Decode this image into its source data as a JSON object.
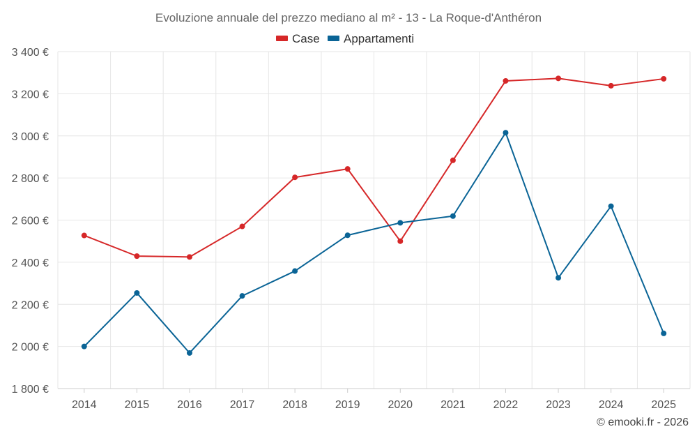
{
  "chart_data": {
    "type": "line",
    "title": "Evoluzione annuale del prezzo mediano al m² - 13 - La Roque-d'Anthéron",
    "categories": [
      "2014",
      "2015",
      "2016",
      "2017",
      "2018",
      "2019",
      "2020",
      "2021",
      "2022",
      "2023",
      "2024",
      "2025"
    ],
    "series": [
      {
        "name": "Case",
        "color": "#d62728",
        "values": [
          2527,
          2429,
          2425,
          2570,
          2803,
          2843,
          2500,
          2884,
          3261,
          3273,
          3238,
          3271
        ]
      },
      {
        "name": "Appartamenti",
        "color": "#0a6496",
        "values": [
          2000,
          2254,
          1969,
          2240,
          2358,
          2528,
          2587,
          2619,
          3015,
          2326,
          2666,
          2062
        ]
      }
    ],
    "ylim": [
      1800,
      3400
    ],
    "yticks": [
      1800,
      2000,
      2200,
      2400,
      2600,
      2800,
      3000,
      3200,
      3400
    ],
    "ytick_labels": [
      "1 800 €",
      "2 000 €",
      "2 200 €",
      "2 400 €",
      "2 600 €",
      "2 800 €",
      "3 000 €",
      "3 200 €",
      "3 400 €"
    ],
    "xlabel": "",
    "ylabel": "",
    "legend_position": "top-center",
    "grid": true
  },
  "credit": "© emooki.fr - 2026"
}
